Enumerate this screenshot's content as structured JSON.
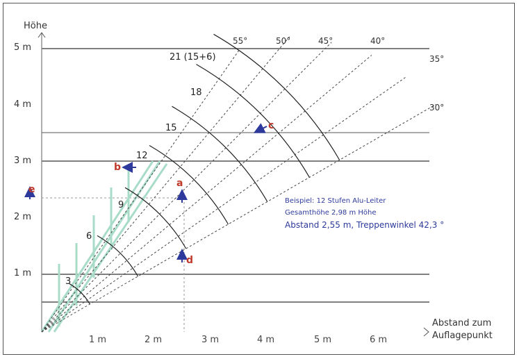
{
  "axes": {
    "y_title": "Höhe",
    "x_title_line1": "Abstand zum",
    "x_title_line2": "Auflagepunkt",
    "y_ticks": [
      "1 m",
      "2 m",
      "3 m",
      "4 m",
      "5 m"
    ],
    "x_ticks": [
      "1 m",
      "2 m",
      "3 m",
      "4 m",
      "5 m",
      "6 m"
    ]
  },
  "angles": [
    "55°",
    "50°",
    "45°",
    "40°",
    "35°",
    "30°"
  ],
  "steps": [
    "3",
    "6",
    "9",
    "12",
    "15",
    "18",
    "21 (15+6)"
  ],
  "markers": {
    "a": "a",
    "b": "b",
    "c": "c",
    "d": "d",
    "e": "e"
  },
  "example": {
    "line1": "Beispiel: 12 Stufen Alu-Leiter",
    "line2": "Gesamthöhe 2,98 m Höhe",
    "line3": "Abstand 2,55 m, Treppenwinkel 42,3 °"
  },
  "colors": {
    "grid": "#555555",
    "arc": "#222222",
    "ray": "#444444",
    "ladder": "#a8dcc8",
    "marker": "#c0392b",
    "arrow": "#2d3a9c",
    "example": "#2d3a9c"
  }
}
